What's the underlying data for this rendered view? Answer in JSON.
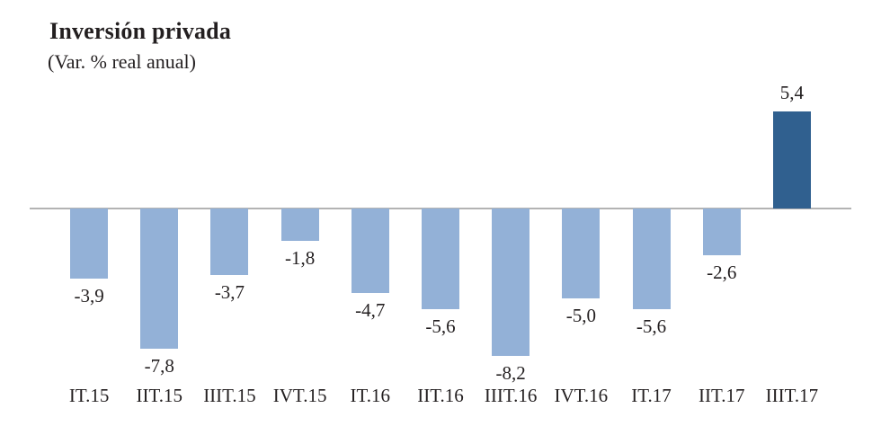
{
  "chart_data": {
    "type": "bar",
    "title": "Inversión privada",
    "subtitle": "(Var. % real anual)",
    "categories": [
      "IT.15",
      "IIT.15",
      "IIIT.15",
      "IVT.15",
      "IT.16",
      "IIT.16",
      "IIIT.16",
      "IVT.16",
      "IT.17",
      "IIT.17",
      "IIIT.17"
    ],
    "values": [
      -3.9,
      -7.8,
      -3.7,
      -1.8,
      -4.7,
      -5.6,
      -8.2,
      -5.0,
      -5.6,
      -2.6,
      5.4
    ],
    "value_labels": [
      "-3,9",
      "-7,8",
      "-3,7",
      "-1,8",
      "-4,7",
      "-5,6",
      "-8,2",
      "-5,0",
      "-5,6",
      "-2,6",
      "5,4"
    ],
    "xlabel": "",
    "ylabel": "",
    "ylim": [
      -10,
      7
    ],
    "grid": false,
    "legend_position": "none",
    "colors": {
      "bar_negative": "#93b1d7",
      "bar_positive": "#30608f",
      "axis_line": "#b3b3b3",
      "text": "#231f20"
    }
  }
}
